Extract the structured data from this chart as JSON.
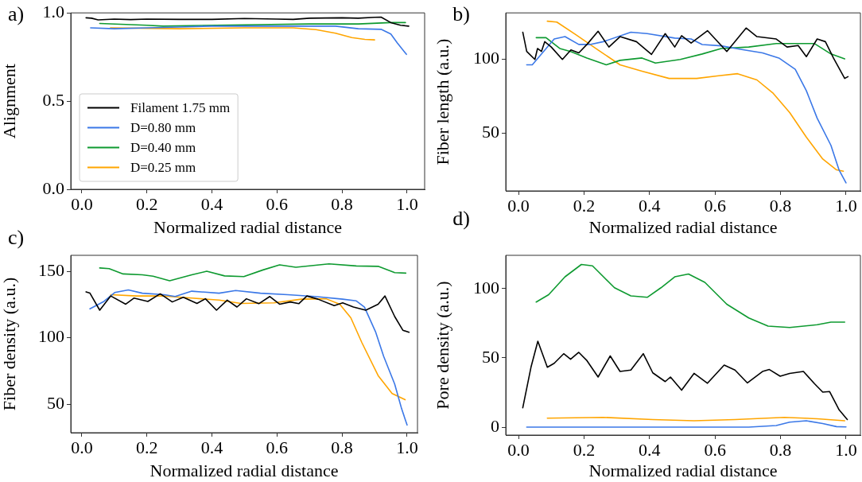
{
  "chart_data": [
    {
      "type": "line",
      "annotations": [
        "a)"
      ],
      "xlabel": "Normalized radial distance",
      "ylabel": "Alignment",
      "legend": "lower left",
      "grid": false,
      "marker": "none",
      "line_style": "solid",
      "xlim": [
        -0.034,
        1.054
      ],
      "xticks": [
        {
          "value": 0,
          "label": "0.0"
        },
        {
          "value": 0.2,
          "label": "0.2"
        },
        {
          "value": 0.4,
          "label": "0.4"
        },
        {
          "value": 0.6,
          "label": "0.6"
        },
        {
          "value": 0.8,
          "label": "0.8"
        },
        {
          "value": 1,
          "label": "1.0"
        }
      ],
      "ylim": [
        0,
        1
      ],
      "yticks": [
        {
          "value": 0,
          "label": "0.0"
        },
        {
          "value": 0.5,
          "label": "0.5"
        },
        {
          "value": 1,
          "label": "1.0"
        }
      ],
      "series": [
        {
          "name": "Filament 1.75 mm",
          "color": "#000000",
          "x": [
            0.013,
            0.03,
            0.05,
            0.1,
            0.15,
            0.2,
            0.3,
            0.4,
            0.5,
            0.6,
            0.65,
            0.7,
            0.8,
            0.85,
            0.9,
            0.92,
            0.95,
            0.98,
            1.005
          ],
          "values": [
            0.972,
            0.97,
            0.96,
            0.965,
            0.962,
            0.965,
            0.963,
            0.963,
            0.968,
            0.965,
            0.963,
            0.97,
            0.972,
            0.97,
            0.975,
            0.976,
            0.945,
            0.93,
            0.925
          ]
        },
        {
          "name": "D=0.80 mm",
          "color": "#3b78e7",
          "x": [
            0.027,
            0.1,
            0.2,
            0.3,
            0.4,
            0.6,
            0.78,
            0.85,
            0.92,
            0.95,
            0.97,
            0.998
          ],
          "values": [
            0.915,
            0.91,
            0.915,
            0.92,
            0.925,
            0.925,
            0.925,
            0.91,
            0.907,
            0.88,
            0.83,
            0.765
          ]
        },
        {
          "name": "D=0.40 mm",
          "color": "#0e9a30",
          "x": [
            0.055,
            0.2,
            0.25,
            0.5,
            0.7,
            0.85,
            0.95,
            0.995
          ],
          "values": [
            0.94,
            0.93,
            0.925,
            0.932,
            0.937,
            0.937,
            0.945,
            0.945
          ]
        },
        {
          "name": "D=0.25 mm",
          "color": "#ffa500",
          "x": [
            0.088,
            0.3,
            0.5,
            0.65,
            0.72,
            0.78,
            0.83,
            0.87,
            0.9
          ],
          "values": [
            0.915,
            0.91,
            0.915,
            0.915,
            0.905,
            0.885,
            0.86,
            0.85,
            0.847
          ]
        }
      ]
    },
    {
      "type": "line",
      "annotations": [
        "b)"
      ],
      "xlabel": "Normalized radial distance",
      "ylabel": "Fiber length (a.u.)",
      "grid": false,
      "marker": "none",
      "line_style": "solid",
      "xlim": [
        -0.039,
        1.044
      ],
      "xticks": [
        {
          "value": 0,
          "label": "0.0"
        },
        {
          "value": 0.2,
          "label": "0.2"
        },
        {
          "value": 0.4,
          "label": "0.4"
        },
        {
          "value": 0.6,
          "label": "0.6"
        },
        {
          "value": 0.8,
          "label": "0.8"
        },
        {
          "value": 1,
          "label": "1.0"
        }
      ],
      "ylim": [
        11,
        131
      ],
      "yticks": [
        50,
        100
      ],
      "series": [
        {
          "color": "#000000",
          "x": [
            0.013,
            0.025,
            0.05,
            0.058,
            0.07,
            0.08,
            0.1,
            0.134,
            0.16,
            0.184,
            0.21,
            0.243,
            0.276,
            0.31,
            0.36,
            0.406,
            0.448,
            0.477,
            0.498,
            0.527,
            0.577,
            0.636,
            0.695,
            0.728,
            0.787,
            0.82,
            0.854,
            0.879,
            0.912,
            0.937,
            0.962,
            0.996,
            1.006
          ],
          "values": [
            118,
            105,
            99.6,
            107,
            105,
            111.6,
            108,
            99.6,
            106,
            104,
            110,
            118.6,
            108,
            115,
            111.6,
            103,
            117,
            108,
            115.6,
            110.7,
            119,
            105,
            120.8,
            115,
            113.4,
            108,
            109,
            101.5,
            113.4,
            111.6,
            100.5,
            86.8,
            88
          ]
        },
        {
          "color": "#3b78e7",
          "x": [
            0.025,
            0.042,
            0.109,
            0.142,
            0.184,
            0.218,
            0.259,
            0.343,
            0.393,
            0.477,
            0.527,
            0.561,
            0.619,
            0.678,
            0.745,
            0.795,
            0.845,
            0.879,
            0.912,
            0.954,
            0.979,
            1.0
          ],
          "values": [
            96,
            96,
            113.4,
            115,
            109.7,
            109.7,
            111.6,
            118,
            117,
            114,
            113.4,
            109.7,
            108.8,
            106.4,
            104,
            100.6,
            93,
            78.5,
            60,
            41.7,
            25,
            16.4
          ]
        },
        {
          "color": "#0e9a30",
          "x": [
            0.054,
            0.084,
            0.126,
            0.159,
            0.209,
            0.268,
            0.31,
            0.377,
            0.418,
            0.494,
            0.561,
            0.619,
            0.703,
            0.787,
            0.904,
            0.954,
            0.996
          ],
          "values": [
            114.3,
            114.3,
            107,
            105,
            100.6,
            96,
            99,
            100.6,
            97.2,
            99.6,
            103.3,
            107,
            108,
            110.3,
            110.3,
            103.3,
            100
          ]
        },
        {
          "color": "#ffa500",
          "x": [
            0.088,
            0.117,
            0.176,
            0.243,
            0.31,
            0.377,
            0.46,
            0.544,
            0.611,
            0.669,
            0.728,
            0.778,
            0.828,
            0.879,
            0.929,
            0.971,
            0.992
          ],
          "values": [
            125.4,
            124.8,
            116.2,
            106,
            96,
            91.7,
            86.8,
            86.8,
            88.6,
            90,
            85.8,
            76.7,
            63.8,
            47.2,
            32.5,
            25.2,
            24.3
          ]
        }
      ]
    },
    {
      "type": "line",
      "annotations": [
        "c)"
      ],
      "xlabel": "Normalized radial distance",
      "ylabel": "Fiber density (a.u.)",
      "grid": false,
      "marker": "none",
      "line_style": "solid",
      "xlim": [
        -0.034,
        1.032
      ],
      "xticks": [
        {
          "value": 0,
          "label": "0.0"
        },
        {
          "value": 0.2,
          "label": "0.2"
        },
        {
          "value": 0.4,
          "label": "0.4"
        },
        {
          "value": 0.6,
          "label": "0.6"
        },
        {
          "value": 0.8,
          "label": "0.8"
        },
        {
          "value": 1,
          "label": "1.0"
        }
      ],
      "ylim": [
        28.5,
        162
      ],
      "yticks": [
        50,
        100,
        150
      ],
      "series": [
        {
          "color": "#000000",
          "x": [
            0.013,
            0.025,
            0.055,
            0.089,
            0.135,
            0.16,
            0.203,
            0.241,
            0.278,
            0.312,
            0.354,
            0.38,
            0.414,
            0.447,
            0.477,
            0.506,
            0.544,
            0.578,
            0.608,
            0.641,
            0.667,
            0.692,
            0.726,
            0.776,
            0.802,
            0.835,
            0.873,
            0.911,
            0.932,
            0.962,
            0.987,
            1.006
          ],
          "values": [
            134.5,
            133.5,
            120.7,
            131.4,
            125.2,
            129.8,
            127.3,
            133,
            126.9,
            130.4,
            125.8,
            129.3,
            120.7,
            128.3,
            123.1,
            129.3,
            125.6,
            131,
            125.2,
            126.9,
            125.6,
            131.4,
            129,
            124.2,
            126.2,
            123.1,
            120.7,
            125.2,
            131.4,
            115.9,
            105.6,
            104.1
          ]
        },
        {
          "color": "#3b78e7",
          "x": [
            0.025,
            0.068,
            0.101,
            0.143,
            0.186,
            0.253,
            0.287,
            0.338,
            0.422,
            0.473,
            0.549,
            0.633,
            0.717,
            0.802,
            0.844,
            0.869,
            0.903,
            0.928,
            0.962,
            0.983,
            1.0
          ],
          "values": [
            121.7,
            127.3,
            134,
            136,
            133.5,
            132.4,
            131,
            135,
            133.5,
            135.5,
            133.5,
            132.4,
            131,
            129,
            127.7,
            123,
            104.5,
            86,
            65,
            46.7,
            34.3
          ]
        },
        {
          "color": "#0e9a30",
          "x": [
            0.055,
            0.084,
            0.127,
            0.186,
            0.219,
            0.27,
            0.338,
            0.384,
            0.439,
            0.498,
            0.557,
            0.608,
            0.658,
            0.76,
            0.844,
            0.911,
            0.962,
            0.996
          ],
          "values": [
            152.5,
            152,
            148,
            147.3,
            146.3,
            142.8,
            147.3,
            150,
            146.5,
            146,
            151,
            154.8,
            153,
            155.6,
            154,
            153.7,
            149,
            148.6
          ]
        },
        {
          "color": "#ffa500",
          "x": [
            0.089,
            0.169,
            0.253,
            0.338,
            0.422,
            0.489,
            0.591,
            0.675,
            0.751,
            0.793,
            0.827,
            0.861,
            0.911,
            0.954,
            0.994
          ],
          "values": [
            132.4,
            131.4,
            131.4,
            129.8,
            128.3,
            125.8,
            126.2,
            129,
            129.3,
            125.2,
            115,
            96.3,
            71.5,
            58,
            53.3
          ]
        }
      ]
    },
    {
      "type": "line",
      "annotations": [
        "d)"
      ],
      "xlabel": "Normalized radial distance",
      "ylabel": "Pore density (a.u.)",
      "grid": false,
      "marker": "none",
      "line_style": "solid",
      "xlim": [
        -0.039,
        1.044
      ],
      "xticks": [
        {
          "value": 0,
          "label": "0.0"
        },
        {
          "value": 0.2,
          "label": "0.2"
        },
        {
          "value": 0.4,
          "label": "0.4"
        },
        {
          "value": 0.6,
          "label": "0.6"
        },
        {
          "value": 0.8,
          "label": "0.8"
        },
        {
          "value": 1,
          "label": "1.0"
        }
      ],
      "ylim": [
        -5.7,
        124
      ],
      "yticks": [
        0,
        50,
        100
      ],
      "series": [
        {
          "color": "#000000",
          "x": [
            0.013,
            0.038,
            0.059,
            0.088,
            0.109,
            0.138,
            0.159,
            0.184,
            0.209,
            0.243,
            0.28,
            0.31,
            0.343,
            0.381,
            0.41,
            0.448,
            0.464,
            0.498,
            0.536,
            0.577,
            0.628,
            0.661,
            0.699,
            0.745,
            0.766,
            0.799,
            0.828,
            0.87,
            0.904,
            0.929,
            0.95,
            0.979,
            1.004
          ],
          "values": [
            14,
            43.2,
            62,
            43.2,
            46.1,
            53,
            49,
            54,
            48,
            36.2,
            51.4,
            40.2,
            41.2,
            53,
            39.2,
            32.9,
            36.2,
            26.7,
            38.8,
            31.7,
            44.8,
            41.2,
            31.9,
            40.2,
            41.6,
            36.8,
            38.8,
            40.2,
            31.3,
            25.3,
            25.7,
            12.5,
            5.5
          ]
        },
        {
          "color": "#3b78e7",
          "x": [
            0.025,
            0.703,
            0.787,
            0.828,
            0.879,
            0.929,
            0.971,
            1.0
          ],
          "values": [
            0,
            0,
            1.2,
            3.6,
            4.6,
            2.6,
            0.4,
            0.2
          ]
        },
        {
          "color": "#0e9a30",
          "x": [
            0.054,
            0.092,
            0.142,
            0.192,
            0.226,
            0.293,
            0.343,
            0.393,
            0.435,
            0.477,
            0.519,
            0.569,
            0.636,
            0.703,
            0.762,
            0.828,
            0.912,
            0.954,
            0.996
          ],
          "values": [
            90.3,
            95.6,
            108.5,
            117.4,
            116.4,
            100.6,
            94.7,
            93.7,
            100.6,
            108.5,
            110.5,
            104.5,
            88.7,
            78.8,
            72.9,
            71.9,
            73.9,
            75.8,
            75.8
          ]
        },
        {
          "color": "#ffa500",
          "x": [
            0.088,
            0.259,
            0.41,
            0.536,
            0.661,
            0.812,
            0.912,
            0.996
          ],
          "values": [
            6.5,
            7.1,
            5.5,
            4.6,
            5.5,
            7.1,
            6.1,
            4.6
          ]
        }
      ]
    }
  ]
}
